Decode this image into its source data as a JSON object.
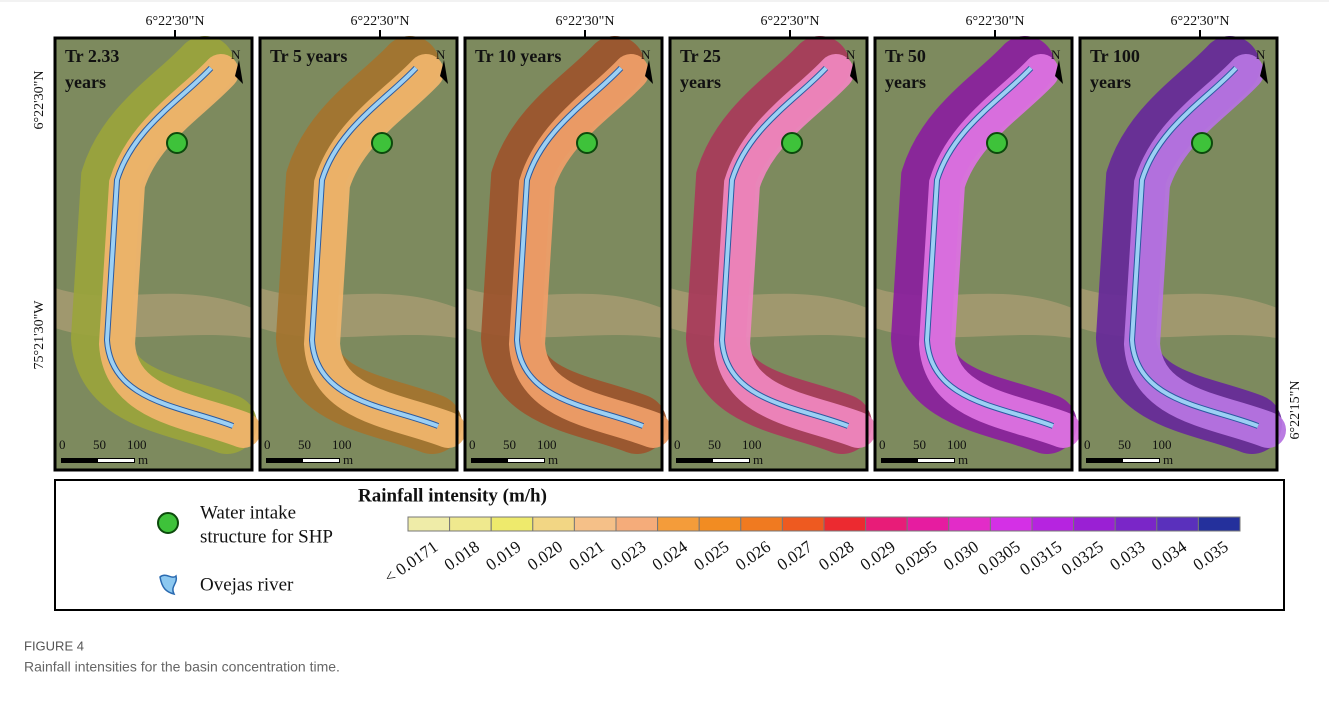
{
  "figure": {
    "panels": [
      {
        "title": [
          "Tr 2.33",
          "years"
        ],
        "coordinate": "6°22'30\"N",
        "north": "N",
        "scale": [
          "0",
          "50",
          "100"
        ],
        "unit": "m",
        "fill_left": "#9aa43c",
        "fill_right": "#efb46c"
      },
      {
        "title": [
          "Tr 5 years"
        ],
        "coordinate": "6°22'30\"N",
        "north": "N",
        "scale": [
          "0",
          "50",
          "100"
        ],
        "unit": "m",
        "fill_left": "#a4732e",
        "fill_right": "#efb46c"
      },
      {
        "title": [
          "Tr 10 years"
        ],
        "coordinate": "6°22'30\"N",
        "north": "N",
        "scale": [
          "0",
          "50",
          "100"
        ],
        "unit": "m",
        "fill_left": "#9c542c",
        "fill_right": "#ee9e68"
      },
      {
        "title": [
          "Tr 25",
          "years"
        ],
        "coordinate": "6°22'30\"N",
        "north": "N",
        "scale": [
          "0",
          "50",
          "100"
        ],
        "unit": "m",
        "fill_left": "#a83a5a",
        "fill_right": "#ee86be"
      },
      {
        "title": [
          "Tr 50",
          "years"
        ],
        "coordinate": "6°22'30\"N",
        "north": "N",
        "scale": [
          "0",
          "50",
          "100"
        ],
        "unit": "m",
        "fill_left": "#8a1e9e",
        "fill_right": "#dc72e0"
      },
      {
        "title": [
          "Tr 100",
          "years"
        ],
        "coordinate": "6°22'30\"N",
        "north": "N",
        "scale": [
          "0",
          "50",
          "100"
        ],
        "unit": "m",
        "fill_left": "#66289a",
        "fill_right": "#b674e0"
      }
    ],
    "left_labels": [
      "6°22'30\"N",
      "75°21'30\"W"
    ],
    "right_label": "6°22'15\"N",
    "legend": {
      "intake": [
        "Water intake",
        "structure for SHP"
      ],
      "river": "Ovejas river",
      "title": "Rainfall intensity (m/h)",
      "classes": [
        {
          "label": "< 0.0171",
          "color": "#efeca8"
        },
        {
          "label": "0.018",
          "color": "#efe98e"
        },
        {
          "label": "0.019",
          "color": "#eeea6c"
        },
        {
          "label": "0.020",
          "color": "#f2d684"
        },
        {
          "label": "0.021",
          "color": "#f5c088"
        },
        {
          "label": "0.023",
          "color": "#f5ac7a"
        },
        {
          "label": "0.024",
          "color": "#f49c3a"
        },
        {
          "label": "0.025",
          "color": "#f28c22"
        },
        {
          "label": "0.026",
          "color": "#f07a20"
        },
        {
          "label": "0.027",
          "color": "#ee5a20"
        },
        {
          "label": "0.028",
          "color": "#ec2a30"
        },
        {
          "label": "0.029",
          "color": "#e81c78"
        },
        {
          "label": "0.0295",
          "color": "#e61ca0"
        },
        {
          "label": "0.030",
          "color": "#e22cc8"
        },
        {
          "label": "0.0305",
          "color": "#d430e6"
        },
        {
          "label": "0.0315",
          "color": "#b624e0"
        },
        {
          "label": "0.0325",
          "color": "#9a20d4"
        },
        {
          "label": "0.033",
          "color": "#7a26c8"
        },
        {
          "label": "0.034",
          "color": "#5a30bc"
        },
        {
          "label": "0.035",
          "color": "#24309c"
        }
      ]
    },
    "caption": {
      "label": "FIGURE 4",
      "text": "Rainfall intensities for the basin concentration time."
    }
  }
}
